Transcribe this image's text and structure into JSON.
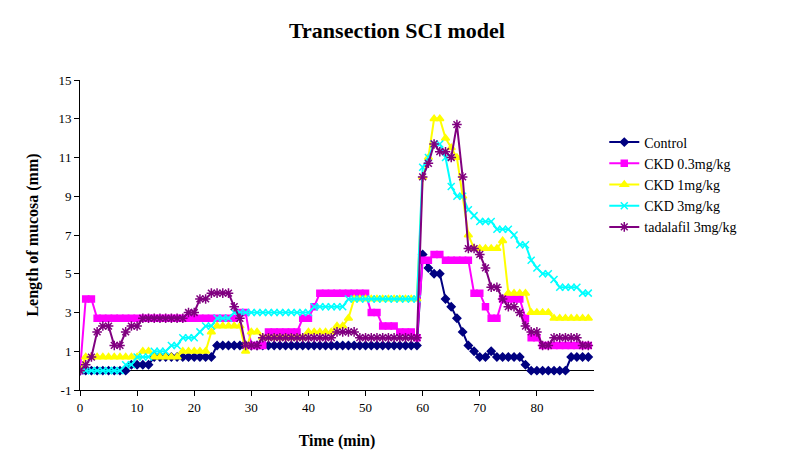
{
  "chart_data": {
    "type": "line",
    "title": "Transection SCI model",
    "x_label": "Time (min)",
    "y_label": "Length of mucosa (mm)",
    "x": [
      0,
      1,
      2,
      3,
      4,
      5,
      6,
      7,
      8,
      9,
      10,
      11,
      12,
      13,
      14,
      15,
      16,
      17,
      18,
      19,
      20,
      21,
      22,
      23,
      24,
      25,
      26,
      27,
      28,
      29,
      30,
      31,
      32,
      33,
      34,
      35,
      36,
      37,
      38,
      39,
      40,
      41,
      42,
      43,
      44,
      45,
      46,
      47,
      48,
      49,
      50,
      51,
      52,
      53,
      54,
      55,
      56,
      57,
      58,
      59,
      60,
      61,
      62,
      63,
      64,
      65,
      66,
      67,
      68,
      69,
      70,
      71,
      72,
      73,
      74,
      75,
      76,
      77,
      78,
      79,
      80,
      81,
      82,
      83,
      84,
      85,
      86,
      87,
      88,
      89
    ],
    "series": [
      {
        "name": "Control",
        "color": "#000080",
        "marker": "diamond",
        "values": [
          0,
          0,
          0,
          0,
          0,
          0,
          0,
          0,
          0,
          0.3,
          0.3,
          0.3,
          0.3,
          0.7,
          0.7,
          0.7,
          0.7,
          0.7,
          0.7,
          0.7,
          0.7,
          0.7,
          0.7,
          0.7,
          1.3,
          1.3,
          1.3,
          1.3,
          1.3,
          1.3,
          1.3,
          1.3,
          1.3,
          1.3,
          1.3,
          1.3,
          1.3,
          1.3,
          1.3,
          1.3,
          1.3,
          1.3,
          1.3,
          1.3,
          1.3,
          1.3,
          1.3,
          1.3,
          1.3,
          1.3,
          1.3,
          1.3,
          1.3,
          1.3,
          1.3,
          1.3,
          1.3,
          1.3,
          1.3,
          1.3,
          6,
          5.3,
          5,
          5,
          3.7,
          3.3,
          2.7,
          2,
          1.3,
          1,
          0.7,
          0.7,
          1,
          0.7,
          0.7,
          0.7,
          0.7,
          0.7,
          0.3,
          0,
          0,
          0,
          0,
          0,
          0,
          0,
          0.7,
          0.7,
          0.7,
          0.7
        ]
      },
      {
        "name": "CKD 0.3mg/kg",
        "color": "#FF00FF",
        "marker": "square",
        "values": [
          0,
          3.7,
          3.7,
          2.7,
          2.7,
          2.7,
          2.7,
          2.7,
          2.7,
          2.7,
          2.7,
          2.7,
          2.7,
          2.7,
          2.7,
          2.7,
          2.7,
          2.7,
          2.7,
          2.7,
          2.7,
          2.7,
          2.7,
          2.7,
          2.7,
          2.7,
          2.7,
          2.7,
          3,
          3,
          1.3,
          1.3,
          1.3,
          2,
          2,
          2,
          2,
          2,
          2,
          2.7,
          2.7,
          3.3,
          4,
          4,
          4,
          4,
          4,
          4,
          4,
          4,
          4,
          3,
          3,
          2.3,
          2.3,
          2.3,
          2,
          2,
          2,
          1.7,
          5.7,
          5.7,
          6,
          6,
          5.7,
          5.7,
          5.7,
          5.7,
          5.7,
          4,
          4,
          3.3,
          2.7,
          2.7,
          3.7,
          3.7,
          3.7,
          3.7,
          2.7,
          1.7,
          1.7,
          1.3,
          1.3,
          1.3,
          1.3,
          1.3,
          1.3,
          1.3,
          1.3,
          1.3
        ]
      },
      {
        "name": "CKD 1mg/kg",
        "color": "#FFFF00",
        "marker": "triangle-up",
        "values": [
          0,
          0.7,
          0.7,
          0.7,
          0.7,
          0.7,
          0.7,
          0.7,
          0.7,
          0.7,
          0.7,
          1,
          1,
          0.7,
          0.7,
          0.7,
          0.7,
          0.7,
          1,
          1,
          1,
          1,
          1,
          2,
          2.3,
          2.3,
          2.3,
          2.3,
          2.3,
          1,
          2,
          2,
          1.7,
          1.7,
          1.7,
          1.7,
          1.7,
          1.7,
          1.7,
          1.7,
          2,
          2,
          2,
          2,
          2,
          2.3,
          2.3,
          2.7,
          3.7,
          3.7,
          3.7,
          3.7,
          3.7,
          3.7,
          3.7,
          3.7,
          3.7,
          3.7,
          3.7,
          3.7,
          10,
          11,
          13,
          13,
          12,
          11.5,
          11,
          9,
          7,
          6.3,
          6.3,
          6.3,
          6.3,
          6.3,
          6.7,
          4,
          4,
          4,
          4,
          3,
          3,
          3,
          3,
          2.7,
          2.7,
          2.7,
          2.7,
          2.7,
          2.7,
          2.7
        ]
      },
      {
        "name": "CKD 3mg/kg",
        "color": "#00FFFF",
        "marker": "x",
        "values": [
          0,
          0,
          0,
          0,
          0,
          0,
          0,
          0,
          0.3,
          0.3,
          0.7,
          0.7,
          0.7,
          1,
          1,
          1,
          1.3,
          1.3,
          1.7,
          1.7,
          1.7,
          2,
          2.3,
          2.3,
          2.7,
          2.7,
          2.7,
          3,
          3,
          3,
          3,
          3,
          3,
          3,
          3,
          3,
          3,
          3,
          3,
          3,
          3,
          3.3,
          3.3,
          3.3,
          3.3,
          3.3,
          3.3,
          3.7,
          3.7,
          3.7,
          3.7,
          3.7,
          3.7,
          3.7,
          3.7,
          3.7,
          3.7,
          3.7,
          3.7,
          3.7,
          10.5,
          11,
          11.7,
          11.7,
          11,
          9.5,
          9,
          9,
          8.3,
          8,
          7.7,
          7.7,
          7.7,
          7.3,
          7.3,
          7.3,
          7,
          6.5,
          6.5,
          5.7,
          5.3,
          5,
          5,
          4.7,
          4.3,
          4.3,
          4.3,
          4.3,
          4,
          4
        ]
      },
      {
        "name": "tadalafil 3mg/kg",
        "color": "#800080",
        "marker": "asterisk",
        "values": [
          0,
          0.3,
          0.7,
          2,
          2.3,
          2.3,
          1.3,
          1.3,
          2,
          2.3,
          2.3,
          2.7,
          2.7,
          2.7,
          2.7,
          2.7,
          2.7,
          2.7,
          2.7,
          3,
          3,
          3.7,
          3.7,
          4,
          4,
          4,
          4,
          3.3,
          2.7,
          1.3,
          1.3,
          1.3,
          1.7,
          1.7,
          1.7,
          1.7,
          1.7,
          1.7,
          1.7,
          1.7,
          1.7,
          1.7,
          1.7,
          1.7,
          1.7,
          2,
          2,
          2,
          2,
          1.7,
          1.7,
          1.7,
          1.7,
          1.7,
          1.7,
          1.7,
          1.7,
          1.7,
          1.7,
          1.7,
          10,
          10.7,
          11.7,
          11.3,
          11.3,
          11,
          12.7,
          10,
          6.3,
          6.3,
          6,
          5.3,
          4.3,
          4.3,
          3.7,
          3.3,
          3.3,
          3,
          2.3,
          2,
          2,
          1.3,
          1.3,
          1.7,
          1.7,
          1.7,
          1.7,
          1.7,
          1.3,
          1.3
        ]
      }
    ],
    "xlim": [
      0,
      90
    ],
    "xticks": [
      0,
      10,
      20,
      30,
      40,
      50,
      60,
      70,
      80
    ],
    "ylim": [
      -1,
      15
    ],
    "yticks": [
      -1,
      1,
      3,
      5,
      7,
      9,
      11,
      13,
      15
    ],
    "grid": false,
    "legend": "right"
  }
}
